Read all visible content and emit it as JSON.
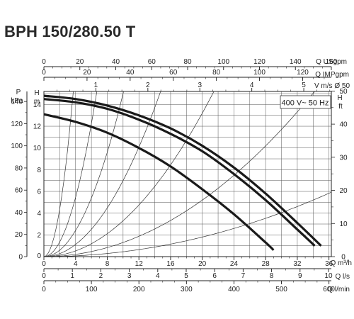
{
  "chart_data": {
    "type": "line",
    "title": "BPH 150/280.50 T",
    "legend": "400 V~ 50 Hz",
    "ylabel_left": [
      "P",
      "kPa"
    ],
    "ylabel_head_left": [
      "H",
      "m"
    ],
    "ylabel_right": [
      "H",
      "ft"
    ],
    "top_axes": [
      {
        "unit": "Q USgpm",
        "min": 0,
        "max": 160,
        "ticks": [
          0,
          20,
          40,
          60,
          80,
          100,
          120,
          140,
          160
        ]
      },
      {
        "unit": "Q IMPgpm",
        "min": 0,
        "max": 133.3,
        "ticks": [
          0,
          20,
          40,
          60,
          80,
          100,
          120
        ]
      },
      {
        "unit": "V m/s Ø 50",
        "min": 0,
        "max": 5.53,
        "ticks": [
          1,
          2,
          3,
          4,
          5
        ]
      }
    ],
    "bottom_axes": [
      {
        "unit": "Q m³/h",
        "min": 0,
        "max": 36.3,
        "ticks": [
          0,
          4,
          8,
          12,
          16,
          20,
          24,
          28,
          32,
          36
        ]
      },
      {
        "unit": "Q l/s",
        "min": 0,
        "max": 10.1,
        "ticks": [
          0,
          1,
          2,
          3,
          4,
          5,
          6,
          7,
          8,
          9,
          10
        ]
      },
      {
        "unit": "Q l/min",
        "min": 0,
        "max": 605,
        "ticks": [
          0,
          100,
          200,
          300,
          400,
          500,
          600
        ]
      }
    ],
    "x": {
      "label": "Q m³/h",
      "min": 0,
      "max": 36.3
    },
    "y": {
      "label": "H m",
      "min": 0,
      "max": 15.2,
      "ticks": [
        0,
        2,
        4,
        6,
        8,
        10,
        12,
        14
      ]
    },
    "y_kpa_ticks": [
      0,
      20,
      40,
      60,
      80,
      100,
      120,
      140
    ],
    "y_ft_ticks": [
      0,
      10,
      20,
      30,
      40,
      50
    ],
    "grid": true,
    "series": [
      {
        "values": [
          [
            0,
            14.8
          ],
          [
            4,
            14.5
          ],
          [
            8,
            13.9
          ],
          [
            12,
            13.0
          ],
          [
            16,
            11.8
          ],
          [
            20,
            10.2
          ],
          [
            24,
            8.2
          ],
          [
            28,
            5.8
          ],
          [
            32,
            3.1
          ],
          [
            35,
            1.0
          ]
        ]
      },
      {
        "values": [
          [
            0,
            14.5
          ],
          [
            4,
            14.2
          ],
          [
            8,
            13.6
          ],
          [
            12,
            12.6
          ],
          [
            16,
            11.3
          ],
          [
            20,
            9.7
          ],
          [
            24,
            7.6
          ],
          [
            28,
            5.2
          ],
          [
            32,
            2.5
          ],
          [
            34.2,
            1.0
          ]
        ]
      },
      {
        "values": [
          [
            0,
            13.1
          ],
          [
            4,
            12.4
          ],
          [
            8,
            11.4
          ],
          [
            12,
            10.0
          ],
          [
            16,
            8.3
          ],
          [
            20,
            6.2
          ],
          [
            24,
            3.9
          ],
          [
            28,
            1.3
          ],
          [
            29,
            0.6
          ]
        ]
      }
    ],
    "system_curve_coefficients": [
      1.1,
      0.34,
      0.15,
      0.07,
      0.033,
      0.013,
      0.0045
    ]
  }
}
